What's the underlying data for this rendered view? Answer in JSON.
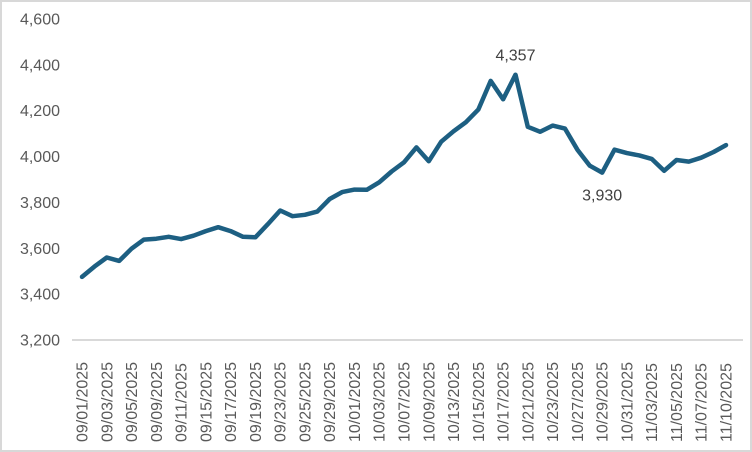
{
  "chart_data": {
    "type": "line",
    "title": "",
    "legend": "none",
    "grid": "none",
    "x_labels": [
      "09/01/2025",
      "09/03/2025",
      "09/05/2025",
      "09/09/2025",
      "09/11/2025",
      "09/15/2025",
      "09/17/2025",
      "09/19/2025",
      "09/23/2025",
      "09/25/2025",
      "09/29/2025",
      "10/01/2025",
      "10/03/2025",
      "10/07/2025",
      "10/09/2025",
      "10/13/2025",
      "10/15/2025",
      "10/17/2025",
      "10/21/2025",
      "10/23/2025",
      "10/27/2025",
      "10/29/2025",
      "10/31/2025",
      "11/03/2025",
      "11/05/2025",
      "11/07/2025",
      "11/10/2025"
    ],
    "points_per_label_gap": 2,
    "values": [
      3475,
      3520,
      3560,
      3545,
      3598,
      3638,
      3642,
      3650,
      3640,
      3655,
      3675,
      3692,
      3675,
      3650,
      3648,
      3705,
      3765,
      3740,
      3746,
      3760,
      3815,
      3845,
      3856,
      3855,
      3888,
      3935,
      3975,
      4040,
      3980,
      4065,
      4110,
      4150,
      4205,
      4330,
      4250,
      4357,
      4130,
      4108,
      4135,
      4122,
      4030,
      3960,
      3930,
      4030,
      4015,
      4005,
      3990,
      3938,
      3985,
      3978,
      3995,
      4020,
      4050
    ],
    "ylim": [
      3200,
      4600
    ],
    "y_ticks": [
      3200,
      3400,
      3600,
      3800,
      4000,
      4200,
      4400,
      4600
    ],
    "y_tick_labels": [
      "3,200",
      "3,400",
      "3,600",
      "3,800",
      "4,000",
      "4,200",
      "4,400",
      "4,600"
    ],
    "annotations": [
      {
        "text": "4,357",
        "point_index": 35,
        "placement": "above"
      },
      {
        "text": "3,930",
        "point_index": 42,
        "placement": "below"
      }
    ],
    "colors": {
      "line": "#1d5f82",
      "tick_label": "#595959",
      "annotation": "#404040",
      "axis_line": "#d9d9d9",
      "background": "#ffffff",
      "frame_border": "#d8d8d8"
    }
  }
}
